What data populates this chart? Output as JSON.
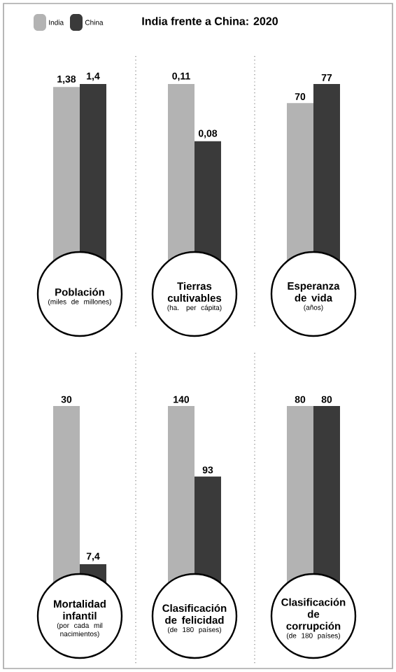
{
  "chart_data": [
    {
      "type": "bar",
      "legend": "top left",
      "xlabel": "Población",
      "annotations": [
        "(miles de millones)"
      ],
      "categories": [
        null
      ],
      "series": [
        {
          "name": "India",
          "color": "#b3b3b3",
          "values": [
            1.38
          ],
          "value_labels": [
            "1,38"
          ]
        },
        {
          "name": "China",
          "color": "#3a3a3a",
          "values": [
            1.4
          ],
          "value_labels": [
            "1,4"
          ]
        }
      ]
    },
    {
      "type": "bar",
      "title": "India frente a China: 2020",
      "xlabel": "Tierras cultivables",
      "annotations": [
        "(ha. per cápita)"
      ],
      "categories": [
        null
      ],
      "series": [
        {
          "color": "#b3b3b3",
          "values": [
            0.11
          ],
          "value_labels": [
            "0,11"
          ]
        },
        {
          "color": "#3a3a3a",
          "values": [
            0.08
          ],
          "value_labels": [
            "0,08"
          ]
        }
      ]
    },
    {
      "type": "bar",
      "xlabel": "Esperanza de vida",
      "annotations": [
        "(años)"
      ],
      "categories": [
        null
      ],
      "series": [
        {
          "color": "#b3b3b3",
          "values": [
            70
          ],
          "value_labels": [
            "70"
          ]
        },
        {
          "color": "#3a3a3a",
          "values": [
            77
          ],
          "value_labels": [
            "77"
          ]
        }
      ]
    },
    {
      "type": "bar",
      "xlabel": "Mortalidad infantil",
      "annotations": [
        "(por cada mil nacimientos)"
      ],
      "categories": [
        null
      ],
      "series": [
        {
          "color": "#b3b3b3",
          "values": [
            30
          ],
          "value_labels": [
            "30"
          ]
        },
        {
          "color": "#3a3a3a",
          "values": [
            7.4
          ],
          "value_labels": [
            "7,4"
          ]
        }
      ]
    },
    {
      "type": "bar",
      "xlabel": "Clasificación de felicidad",
      "annotations": [
        "(de 180 países)"
      ],
      "categories": [
        null
      ],
      "series": [
        {
          "color": "#b3b3b3",
          "values": [
            140
          ],
          "value_labels": [
            "140"
          ]
        },
        {
          "color": "#3a3a3a",
          "values": [
            93
          ],
          "value_labels": [
            "93"
          ]
        }
      ]
    },
    {
      "type": "bar",
      "xlabel": "Clasificación de corrupción",
      "annotations": [
        "(de 180 países)"
      ],
      "categories": [
        null
      ],
      "series": [
        {
          "color": "#b3b3b3",
          "values": [
            80
          ],
          "value_labels": [
            "80"
          ]
        },
        {
          "color": "#3a3a3a",
          "values": [
            80
          ],
          "value_labels": [
            "80"
          ]
        }
      ]
    }
  ]
}
